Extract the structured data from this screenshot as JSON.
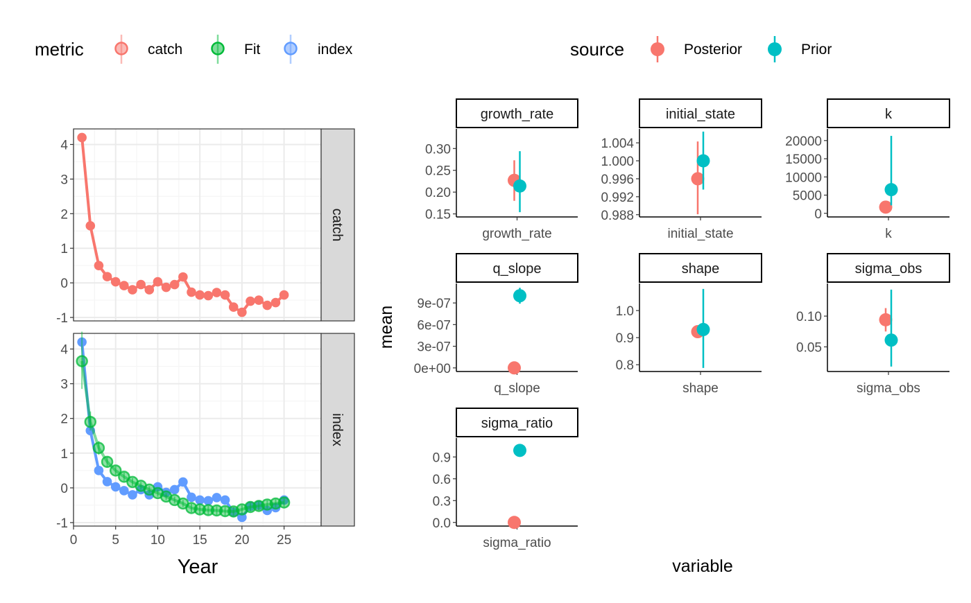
{
  "colors": {
    "catch": "#F8766D",
    "fit": "#00BA38",
    "index": "#619CFF",
    "posterior": "#F8766D",
    "prior": "#00BFC4",
    "strip_fill": "#D9D9D9",
    "grid_major": "#EBEBEB",
    "grid_minor": "#F5F5F5"
  },
  "legend_left": {
    "title": "metric",
    "items": [
      {
        "key": "catch",
        "label": "catch"
      },
      {
        "key": "fit",
        "label": "Fit"
      },
      {
        "key": "index",
        "label": "index"
      }
    ]
  },
  "legend_right": {
    "title": "source",
    "items": [
      {
        "key": "posterior",
        "label": "Posterior"
      },
      {
        "key": "prior",
        "label": "Prior"
      }
    ]
  },
  "chart_data": [
    {
      "type": "line",
      "xlabel": "Year",
      "ylabel": "",
      "xlim": [
        0,
        29.4
      ],
      "x_ticks": [
        0,
        5,
        10,
        15,
        20,
        25
      ],
      "y_ticks": [
        -1,
        0,
        1,
        2,
        3,
        4
      ],
      "grid": true,
      "facets": [
        {
          "strip": "catch",
          "ylim": [
            -1.1,
            4.45
          ],
          "series": [
            {
              "name": "catch",
              "color_key": "catch",
              "x": [
                1,
                2,
                3,
                4,
                5,
                6,
                7,
                8,
                9,
                10,
                11,
                12,
                13,
                14,
                15,
                16,
                17,
                18,
                19,
                20,
                21,
                22,
                23,
                24,
                25
              ],
              "values": [
                4.2,
                1.65,
                0.5,
                0.18,
                0.03,
                -0.08,
                -0.2,
                -0.05,
                -0.2,
                0.03,
                -0.13,
                -0.05,
                0.17,
                -0.27,
                -0.35,
                -0.37,
                -0.28,
                -0.35,
                -0.7,
                -0.85,
                -0.53,
                -0.5,
                -0.65,
                -0.57,
                -0.35
              ]
            }
          ]
        },
        {
          "strip": "index",
          "ylim": [
            -1.1,
            4.45
          ],
          "series": [
            {
              "name": "index",
              "color_key": "index",
              "x": [
                1,
                2,
                3,
                4,
                5,
                6,
                7,
                8,
                9,
                10,
                11,
                12,
                13,
                14,
                15,
                16,
                17,
                18,
                19,
                20,
                21,
                22,
                23,
                24,
                25
              ],
              "values": [
                4.2,
                1.65,
                0.5,
                0.18,
                0.03,
                -0.08,
                -0.2,
                -0.05,
                -0.2,
                0.03,
                -0.13,
                -0.05,
                0.17,
                -0.27,
                -0.35,
                -0.37,
                -0.28,
                -0.35,
                -0.7,
                -0.85,
                -0.53,
                -0.5,
                -0.65,
                -0.57,
                -0.35
              ]
            },
            {
              "name": "Fit",
              "color_key": "fit",
              "x": [
                1,
                2,
                3,
                4,
                5,
                6,
                7,
                8,
                9,
                10,
                11,
                12,
                13,
                14,
                15,
                16,
                17,
                18,
                19,
                20,
                21,
                22,
                23,
                24,
                25
              ],
              "values": [
                3.65,
                1.9,
                1.15,
                0.75,
                0.5,
                0.32,
                0.17,
                0.06,
                -0.05,
                -0.15,
                -0.25,
                -0.35,
                -0.45,
                -0.58,
                -0.62,
                -0.64,
                -0.65,
                -0.67,
                -0.68,
                -0.62,
                -0.55,
                -0.52,
                -0.48,
                -0.45,
                -0.42
              ],
              "lower": [
                2.85,
                1.65,
                0.95,
                0.6,
                0.38,
                0.2,
                0.06,
                -0.05,
                -0.15,
                -0.25,
                -0.35,
                -0.45,
                -0.55,
                -0.7,
                -0.75,
                -0.77,
                -0.78,
                -0.8,
                -0.8,
                -0.75,
                -0.67,
                -0.64,
                -0.6,
                -0.57,
                -0.55
              ],
              "upper": [
                4.5,
                2.2,
                1.35,
                0.9,
                0.62,
                0.44,
                0.28,
                0.17,
                0.05,
                -0.05,
                -0.15,
                -0.25,
                -0.35,
                -0.46,
                -0.5,
                -0.52,
                -0.53,
                -0.55,
                -0.56,
                -0.5,
                -0.43,
                -0.4,
                -0.36,
                -0.33,
                -0.29
              ]
            }
          ]
        }
      ]
    },
    {
      "type": "scatter",
      "xlabel": "variable",
      "ylabel": "mean",
      "facets": [
        {
          "strip": "growth_rate",
          "x_tick": "growth_rate",
          "ylim": [
            0.143,
            0.345
          ],
          "y_ticks": [
            0.15,
            0.2,
            0.25,
            0.3
          ],
          "y_tick_labels": [
            "0.15",
            "0.20",
            "0.25",
            "0.30"
          ],
          "points": [
            {
              "source": "posterior",
              "mean": 0.227,
              "lower": 0.18,
              "upper": 0.273
            },
            {
              "source": "prior",
              "mean": 0.214,
              "lower": 0.154,
              "upper": 0.294
            }
          ]
        },
        {
          "strip": "initial_state",
          "x_tick": "initial_state",
          "ylim": [
            0.9875,
            1.0071
          ],
          "y_ticks": [
            0.988,
            0.992,
            0.996,
            1.0,
            1.004
          ],
          "y_tick_labels": [
            "0.988",
            "0.992",
            "0.996",
            "1.000",
            "1.004"
          ],
          "points": [
            {
              "source": "posterior",
              "mean": 0.996,
              "lower": 0.9881,
              "upper": 1.0043
            },
            {
              "source": "prior",
              "mean": 1.0,
              "lower": 0.9936,
              "upper": 1.0065
            }
          ]
        },
        {
          "strip": "k",
          "x_tick": "k",
          "ylim": [
            -1000,
            23200
          ],
          "y_ticks": [
            0,
            5000,
            10000,
            15000,
            20000
          ],
          "y_tick_labels": [
            "0",
            "5000",
            "10000",
            "15000",
            "20000"
          ],
          "points": [
            {
              "source": "posterior",
              "mean": 1700,
              "lower": 1700,
              "upper": 1700
            },
            {
              "source": "prior",
              "mean": 6500,
              "lower": 2200,
              "upper": 21300
            }
          ]
        },
        {
          "strip": "q_slope",
          "x_tick": "q_slope",
          "ylim": [
            -5e-08,
            1.17e-06
          ],
          "y_ticks": [
            0,
            3e-07,
            6e-07,
            9e-07
          ],
          "y_tick_labels": [
            "0e+00",
            "3e-07",
            "6e-07",
            "9e-07"
          ],
          "points": [
            {
              "source": "posterior",
              "mean": 0,
              "lower": 0,
              "upper": 0
            },
            {
              "source": "prior",
              "mean": 1e-06,
              "lower": 8.9e-07,
              "upper": 1.11e-06
            }
          ]
        },
        {
          "strip": "shape",
          "x_tick": "shape",
          "ylim": [
            0.775,
            1.1
          ],
          "y_ticks": [
            0.8,
            0.9,
            1.0
          ],
          "y_tick_labels": [
            "0.8",
            "0.9",
            "1.0"
          ],
          "points": [
            {
              "source": "posterior",
              "mean": 0.922,
              "lower": 0.922,
              "upper": 0.922
            },
            {
              "source": "prior",
              "mean": 0.93,
              "lower": 0.788,
              "upper": 1.08
            }
          ]
        },
        {
          "strip": "sigma_obs",
          "x_tick": "sigma_obs",
          "ylim": [
            0.01,
            0.153
          ],
          "y_ticks": [
            0.05,
            0.1
          ],
          "y_tick_labels": [
            "0.05",
            "0.10"
          ],
          "points": [
            {
              "source": "posterior",
              "mean": 0.094,
              "lower": 0.075,
              "upper": 0.113
            },
            {
              "source": "prior",
              "mean": 0.061,
              "lower": 0.018,
              "upper": 0.143
            }
          ]
        },
        {
          "strip": "sigma_ratio",
          "x_tick": "sigma_ratio",
          "ylim": [
            -0.05,
            1.16
          ],
          "y_ticks": [
            0,
            0.3,
            0.6,
            0.9
          ],
          "y_tick_labels": [
            "0.0",
            "0.3",
            "0.6",
            "0.9"
          ],
          "points": [
            {
              "source": "posterior",
              "mean": 0,
              "lower": 0,
              "upper": 0
            },
            {
              "source": "prior",
              "mean": 0.99,
              "lower": 0.99,
              "upper": 0.99
            }
          ]
        }
      ]
    }
  ]
}
